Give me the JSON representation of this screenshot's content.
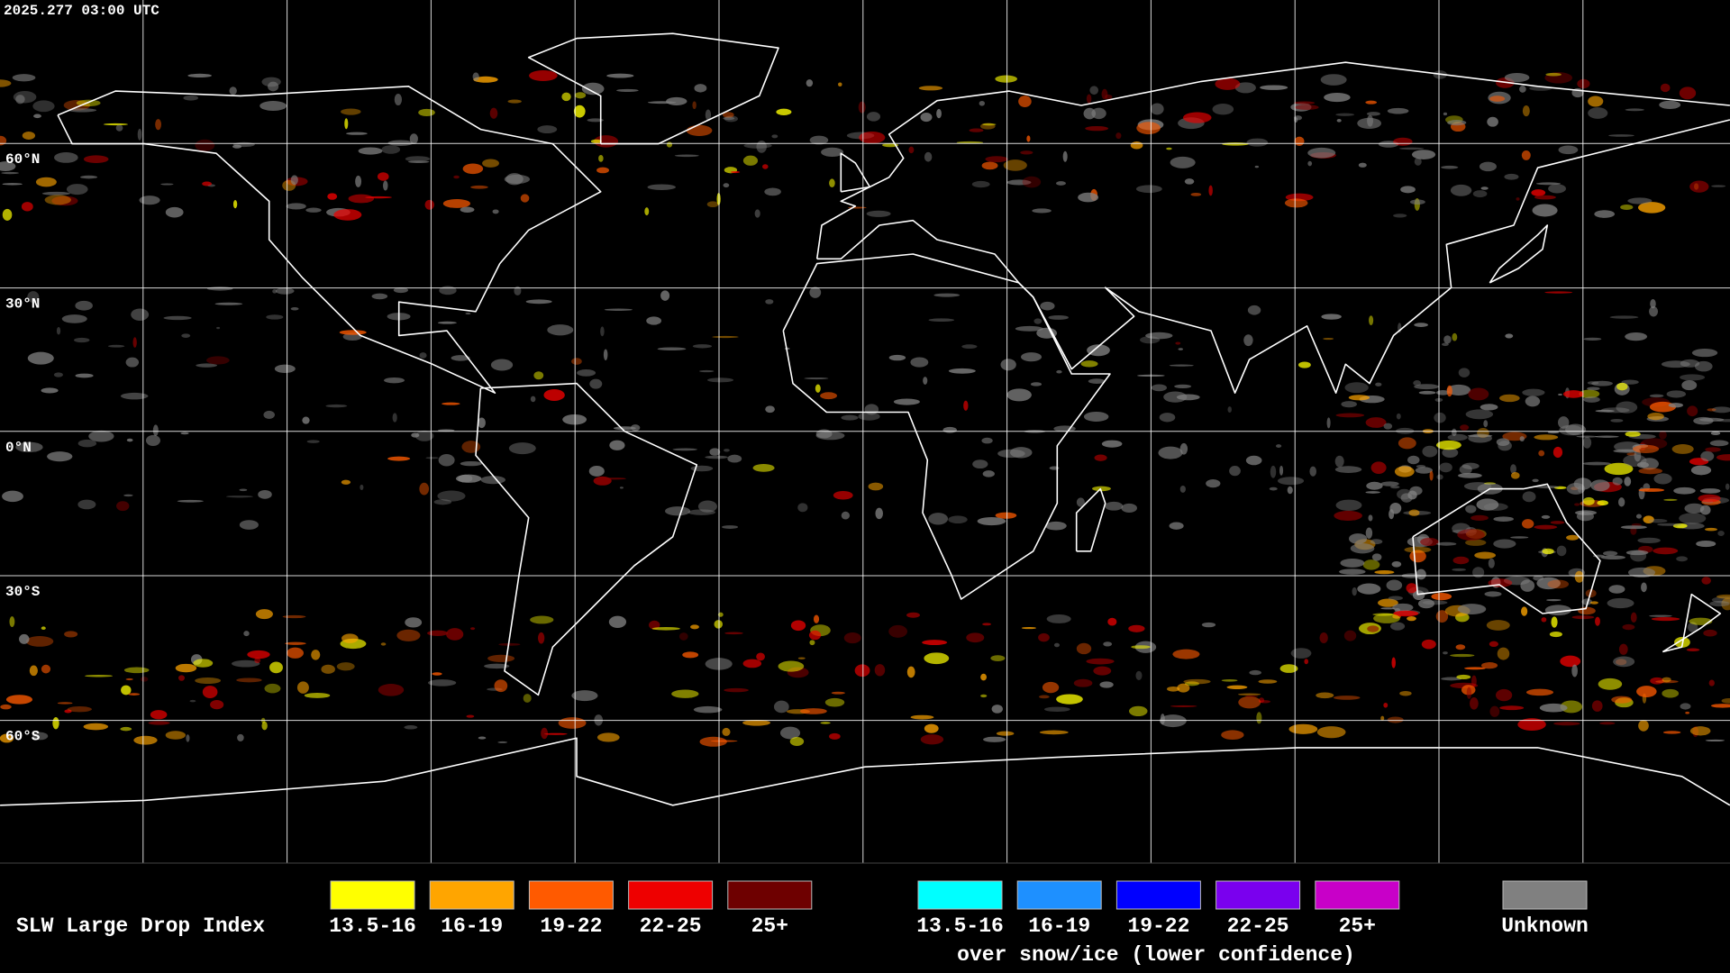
{
  "header": {
    "timestamp": "2025.277 03:00 UTC"
  },
  "map": {
    "latitude_labels": [
      "60°N",
      "30°N",
      "0°N",
      "30°S",
      "60°S"
    ]
  },
  "legend": {
    "title": "SLW Large Drop Index",
    "groups": [
      {
        "items": [
          {
            "label": "13.5-16",
            "color": "#ffff00"
          },
          {
            "label": "16-19",
            "color": "#ffa500"
          },
          {
            "label": "19-22",
            "color": "#ff5a00"
          },
          {
            "label": "22-25",
            "color": "#ee0000"
          },
          {
            "label": "25+",
            "color": "#6e0000"
          }
        ]
      },
      {
        "items": [
          {
            "label": "13.5-16",
            "color": "#00ffff"
          },
          {
            "label": "16-19",
            "color": "#1e90ff"
          },
          {
            "label": "19-22",
            "color": "#0000ff"
          },
          {
            "label": "22-25",
            "color": "#7a00ee"
          },
          {
            "label": "25+",
            "color": "#c800c8"
          }
        ],
        "caption": "over snow/ice (lower confidence)"
      }
    ],
    "unknown": {
      "label": "Unknown",
      "color": "#808080"
    }
  }
}
